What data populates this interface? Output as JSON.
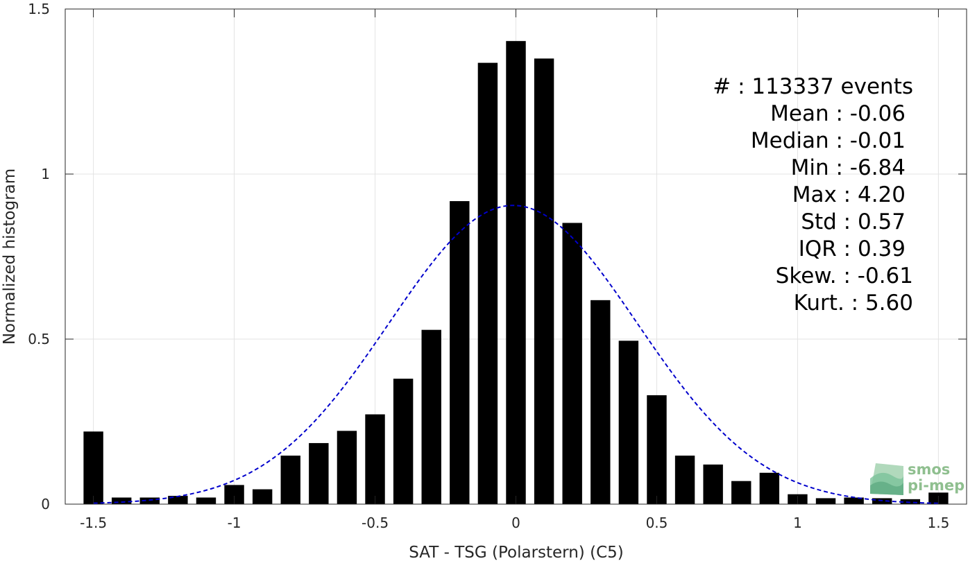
{
  "chart_data": {
    "type": "bar",
    "xlabel": "SAT - TSG (Polarstern) (C5)",
    "ylabel": "Normalized histogram",
    "xlim": [
      -1.6,
      1.6
    ],
    "ylim": [
      0,
      1.5
    ],
    "xticks": [
      -1.5,
      -1,
      -0.5,
      0,
      0.5,
      1,
      1.5
    ],
    "xtick_labels": [
      "-1.5",
      "-1",
      "-0.5",
      "0",
      "0.5",
      "1",
      "1.5"
    ],
    "yticks": [
      0,
      0.5,
      1,
      1.5
    ],
    "ytick_labels": [
      "0",
      "0.5",
      "1",
      "1.5"
    ],
    "grid": true,
    "bar_width": 0.07,
    "bars": [
      {
        "x": -1.5,
        "y": 0.22
      },
      {
        "x": -1.4,
        "y": 0.02
      },
      {
        "x": -1.3,
        "y": 0.02
      },
      {
        "x": -1.2,
        "y": 0.025
      },
      {
        "x": -1.1,
        "y": 0.02
      },
      {
        "x": -1.0,
        "y": 0.058
      },
      {
        "x": -0.9,
        "y": 0.045
      },
      {
        "x": -0.8,
        "y": 0.147
      },
      {
        "x": -0.7,
        "y": 0.185
      },
      {
        "x": -0.6,
        "y": 0.222
      },
      {
        "x": -0.5,
        "y": 0.272
      },
      {
        "x": -0.4,
        "y": 0.38
      },
      {
        "x": -0.3,
        "y": 0.528
      },
      {
        "x": -0.2,
        "y": 0.918
      },
      {
        "x": -0.1,
        "y": 1.337
      },
      {
        "x": 0.0,
        "y": 1.403
      },
      {
        "x": 0.1,
        "y": 1.35
      },
      {
        "x": 0.2,
        "y": 0.852
      },
      {
        "x": 0.3,
        "y": 0.618
      },
      {
        "x": 0.4,
        "y": 0.495
      },
      {
        "x": 0.5,
        "y": 0.33
      },
      {
        "x": 0.6,
        "y": 0.147
      },
      {
        "x": 0.7,
        "y": 0.12
      },
      {
        "x": 0.8,
        "y": 0.07
      },
      {
        "x": 0.9,
        "y": 0.095
      },
      {
        "x": 1.0,
        "y": 0.03
      },
      {
        "x": 1.1,
        "y": 0.018
      },
      {
        "x": 1.2,
        "y": 0.02
      },
      {
        "x": 1.3,
        "y": 0.018
      },
      {
        "x": 1.4,
        "y": 0.015
      },
      {
        "x": 1.5,
        "y": 0.035
      }
    ],
    "fit_curve": {
      "kind": "normal",
      "mean": -0.01,
      "std": 0.44,
      "peak": 0.905,
      "color": "#0000cc",
      "style": "dashed",
      "x_range": [
        -1.5,
        1.5
      ]
    },
    "bar_color": "#000000"
  },
  "stats": [
    {
      "label": "#  : 113337 events",
      "anchor": "end",
      "col": "wide"
    },
    {
      "label": "Mean : -0.06",
      "anchor": "end",
      "col": "narrow"
    },
    {
      "label": "Median : -0.01",
      "anchor": "end",
      "col": "narrow"
    },
    {
      "label": "Min : -6.84",
      "anchor": "end",
      "col": "narrow"
    },
    {
      "label": "Max : 4.20",
      "anchor": "end",
      "col": "narrow"
    },
    {
      "label": "Std : 0.57",
      "anchor": "end",
      "col": "narrow"
    },
    {
      "label": "IQR : 0.39",
      "anchor": "end",
      "col": "narrow"
    },
    {
      "label": "Skew. : -0.61",
      "anchor": "end",
      "col": "wide"
    },
    {
      "label": "Kurt. : 5.60",
      "anchor": "end",
      "col": "wide"
    }
  ],
  "logo": {
    "line1": "smos",
    "line2": "pi-mep",
    "color": "#8fbf8f"
  }
}
